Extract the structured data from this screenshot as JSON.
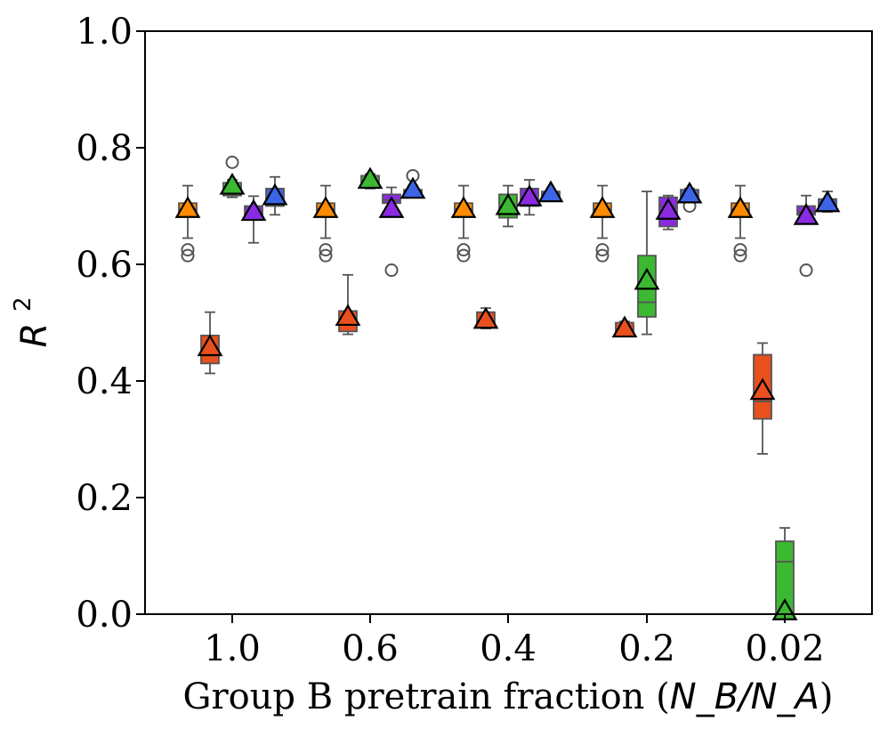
{
  "chart_data": {
    "type": "box",
    "xlabel": "Group B pretrain fraction (",
    "xlabel_math": "N_B/N_A",
    "xlabel_close": ")",
    "ylabel_base": "R",
    "ylabel_sup": "2",
    "categories": [
      "1.0",
      "0.6",
      "0.4",
      "0.2",
      "0.02"
    ],
    "ylim": [
      0.0,
      1.0
    ],
    "yticks": [
      "0.0",
      "0.2",
      "0.4",
      "0.6",
      "0.8",
      "1.0"
    ],
    "grid": false,
    "legend": "none",
    "series": [
      {
        "color": "#ff8c00",
        "boxes": [
          {
            "whislo": 0.645,
            "q1": 0.685,
            "med": 0.695,
            "q3": 0.705,
            "whishi": 0.735,
            "mean": 0.695,
            "fliers": [
              0.625,
              0.615
            ]
          },
          {
            "whislo": 0.645,
            "q1": 0.685,
            "med": 0.695,
            "q3": 0.705,
            "whishi": 0.735,
            "mean": 0.695,
            "fliers": [
              0.625,
              0.615
            ]
          },
          {
            "whislo": 0.645,
            "q1": 0.685,
            "med": 0.695,
            "q3": 0.705,
            "whishi": 0.735,
            "mean": 0.695,
            "fliers": [
              0.625,
              0.615
            ]
          },
          {
            "whislo": 0.645,
            "q1": 0.685,
            "med": 0.695,
            "q3": 0.705,
            "whishi": 0.735,
            "mean": 0.695,
            "fliers": [
              0.625,
              0.615
            ]
          },
          {
            "whislo": 0.645,
            "q1": 0.685,
            "med": 0.695,
            "q3": 0.705,
            "whishi": 0.735,
            "mean": 0.695,
            "fliers": [
              0.625,
              0.615
            ]
          }
        ]
      },
      {
        "color": "#e8501e",
        "boxes": [
          {
            "whislo": 0.413,
            "q1": 0.43,
            "med": 0.445,
            "q3": 0.478,
            "whishi": 0.518,
            "mean": 0.458,
            "fliers": []
          },
          {
            "whislo": 0.48,
            "q1": 0.485,
            "med": 0.5,
            "q3": 0.52,
            "whishi": 0.582,
            "mean": 0.51,
            "fliers": []
          },
          {
            "whislo": 0.49,
            "q1": 0.492,
            "med": 0.5,
            "q3": 0.518,
            "whishi": 0.525,
            "mean": 0.505,
            "fliers": []
          },
          {
            "whislo": 0.482,
            "q1": 0.484,
            "med": 0.488,
            "q3": 0.5,
            "whishi": 0.502,
            "mean": 0.49,
            "fliers": []
          },
          {
            "whislo": 0.275,
            "q1": 0.335,
            "med": 0.365,
            "q3": 0.445,
            "whishi": 0.465,
            "mean": 0.383,
            "fliers": []
          }
        ]
      },
      {
        "color": "#3cb832",
        "boxes": [
          {
            "whislo": 0.715,
            "q1": 0.718,
            "med": 0.73,
            "q3": 0.74,
            "whishi": 0.745,
            "mean": 0.735,
            "fliers": [
              0.775
            ]
          },
          {
            "whislo": 0.73,
            "q1": 0.733,
            "med": 0.74,
            "q3": 0.752,
            "whishi": 0.755,
            "mean": 0.745,
            "fliers": []
          },
          {
            "whislo": 0.665,
            "q1": 0.68,
            "med": 0.69,
            "q3": 0.72,
            "whishi": 0.735,
            "mean": 0.7,
            "fliers": []
          },
          {
            "whislo": 0.48,
            "q1": 0.51,
            "med": 0.535,
            "q3": 0.615,
            "whishi": 0.725,
            "mean": 0.572,
            "fliers": []
          },
          {
            "whislo": 0.0,
            "q1": 0.0,
            "med": 0.09,
            "q3": 0.125,
            "whishi": 0.148,
            "mean": 0.005,
            "fliers": []
          }
        ]
      },
      {
        "color": "#8a2be2",
        "boxes": [
          {
            "whislo": 0.637,
            "q1": 0.68,
            "med": 0.69,
            "q3": 0.7,
            "whishi": 0.717,
            "mean": 0.69,
            "fliers": []
          },
          {
            "whislo": 0.7,
            "q1": 0.705,
            "med": 0.71,
            "q3": 0.72,
            "whishi": 0.732,
            "mean": 0.695,
            "fliers": [
              0.59
            ]
          },
          {
            "whislo": 0.685,
            "q1": 0.7,
            "med": 0.71,
            "q3": 0.73,
            "whishi": 0.745,
            "mean": 0.715,
            "fliers": []
          },
          {
            "whislo": 0.66,
            "q1": 0.665,
            "med": 0.7,
            "q3": 0.715,
            "whishi": 0.718,
            "mean": 0.692,
            "fliers": []
          },
          {
            "whislo": 0.68,
            "q1": 0.685,
            "med": 0.69,
            "q3": 0.7,
            "whishi": 0.718,
            "mean": 0.683,
            "fliers": [
              0.59
            ]
          }
        ]
      },
      {
        "color": "#3c64e6",
        "boxes": [
          {
            "whislo": 0.685,
            "q1": 0.7,
            "med": 0.712,
            "q3": 0.73,
            "whishi": 0.75,
            "mean": 0.717,
            "fliers": []
          },
          {
            "whislo": 0.715,
            "q1": 0.718,
            "med": 0.722,
            "q3": 0.728,
            "whishi": 0.735,
            "mean": 0.728,
            "fliers": [
              0.752
            ]
          },
          {
            "whislo": 0.715,
            "q1": 0.716,
            "med": 0.72,
            "q3": 0.725,
            "whishi": 0.728,
            "mean": 0.722,
            "fliers": []
          },
          {
            "whislo": 0.71,
            "q1": 0.715,
            "med": 0.72,
            "q3": 0.728,
            "whishi": 0.73,
            "mean": 0.72,
            "fliers": [
              0.7
            ]
          },
          {
            "whislo": 0.69,
            "q1": 0.695,
            "med": 0.7,
            "q3": 0.712,
            "whishi": 0.725,
            "mean": 0.705,
            "fliers": []
          }
        ]
      }
    ]
  }
}
